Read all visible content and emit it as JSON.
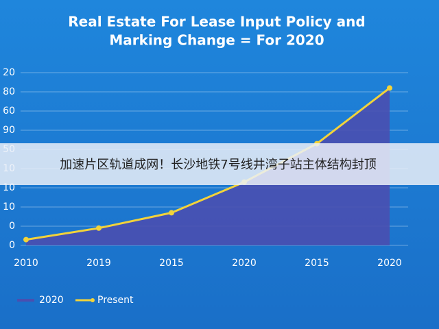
{
  "chart_data": {
    "type": "area",
    "title": [
      "Real Estate For Lease Input Policy and",
      "Marking Change = For 2020"
    ],
    "categories": [
      "2010",
      "2019",
      "2015",
      "2020",
      "2015",
      "2020"
    ],
    "series": [
      {
        "name": "2020",
        "color": "#4a4fb0",
        "values": [
          0.3,
          0.9,
          1.7,
          3.3,
          5.3,
          8.2
        ]
      },
      {
        "name": "Present",
        "color": "#f2d33a",
        "values": [
          0.3,
          0.9,
          1.7,
          3.3,
          5.3,
          8.2
        ]
      }
    ],
    "ylim": [
      0,
      9
    ],
    "yticks": [
      {
        "value": 0,
        "label": "0"
      },
      {
        "value": 1,
        "label": "0"
      },
      {
        "value": 2,
        "label": "10"
      },
      {
        "value": 3,
        "label": "10"
      },
      {
        "value": 4,
        "label": "10"
      },
      {
        "value": 5,
        "label": "50"
      },
      {
        "value": 6,
        "label": "90"
      },
      {
        "value": 7,
        "label": "60"
      },
      {
        "value": 8,
        "label": "80"
      },
      {
        "value": 9,
        "label": "20"
      }
    ],
    "grid": true
  },
  "banner": "加速片区轨道成网！长沙地铁7号线井湾子站主体结构封顶"
}
